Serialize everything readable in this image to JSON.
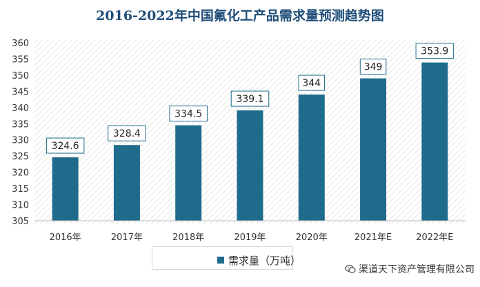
{
  "chart_data": {
    "type": "bar",
    "title": "2016-2022年中国氟化工产品需求量预测趋势图",
    "categories": [
      "2016年",
      "2017年",
      "2018年",
      "2019年",
      "2020年",
      "2021年E",
      "2022年E"
    ],
    "series": [
      {
        "name": "需求量（万吨）",
        "values": [
          324.6,
          328.4,
          334.5,
          339.1,
          344,
          349,
          353.9
        ],
        "labels": [
          "324.6",
          "328.4",
          "334.5",
          "339.1",
          "344",
          "349",
          "353.9"
        ],
        "color": "#1e6b8c"
      }
    ],
    "ylim": [
      305,
      360
    ],
    "yticks": [
      305,
      310,
      315,
      320,
      325,
      330,
      335,
      340,
      345,
      350,
      355,
      360
    ],
    "grid": false,
    "legend_position": "bottom"
  },
  "watermark": {
    "text": "渠道天下资产管理有限公司",
    "icon": "wechat-icon"
  },
  "colors": {
    "title": "#1f4e79",
    "bar": "#1e6b8c",
    "label_border": "#1e6b8c",
    "plot_hatch": "#e6e6e6"
  }
}
